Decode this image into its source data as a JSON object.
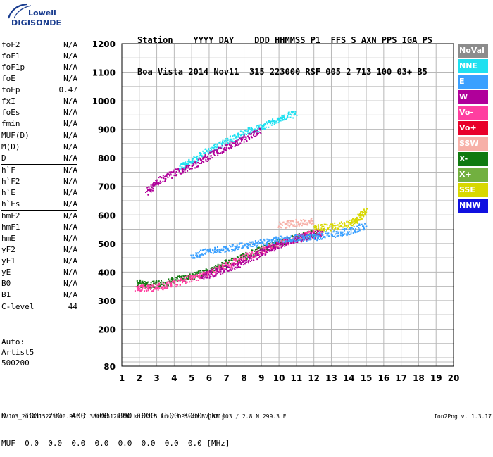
{
  "logo": {
    "line1": "Lowell",
    "line2": "DIGISONDE"
  },
  "header": {
    "line1": "Station    YYYY DAY    DDD HHMMSS P1  FFS S AXN PPS IGA PS",
    "line2": "Boa Vista 2014 Nov11  315 223000 RSF 005 2 713 100 03+ B5"
  },
  "params": {
    "groups": [
      [
        [
          "foF2",
          "N/A"
        ],
        [
          "foF1",
          "N/A"
        ],
        [
          "foF1p",
          "N/A"
        ],
        [
          "foE",
          "N/A"
        ],
        [
          "foEp",
          "0.47"
        ],
        [
          "fxI",
          "N/A"
        ],
        [
          "foEs",
          "N/A"
        ],
        [
          "fmin",
          "N/A"
        ]
      ],
      [
        [
          "MUF(D)",
          "N/A"
        ],
        [
          "M(D)",
          "N/A"
        ],
        [
          "D",
          "N/A"
        ]
      ],
      [
        [
          "h`F",
          "N/A"
        ],
        [
          "h`F2",
          "N/A"
        ],
        [
          "h`E",
          "N/A"
        ],
        [
          "h`Es",
          "N/A"
        ]
      ],
      [
        [
          "hmF2",
          "N/A"
        ],
        [
          "hmF1",
          "N/A"
        ],
        [
          "hmE",
          "N/A"
        ],
        [
          "yF2",
          "N/A"
        ],
        [
          "yF1",
          "N/A"
        ],
        [
          "yE",
          "N/A"
        ],
        [
          "B0",
          "N/A"
        ],
        [
          "B1",
          "N/A"
        ]
      ],
      [
        [
          "C-level",
          "44"
        ]
      ]
    ]
  },
  "auto": {
    "line1": "Auto:",
    "line2": "Artist5",
    "line3": "500200"
  },
  "legend": [
    {
      "label": "NoVal",
      "color": "#8c8c8c"
    },
    {
      "label": "NNE",
      "color": "#1fe0f0"
    },
    {
      "label": "E",
      "color": "#3aa0ff"
    },
    {
      "label": "W",
      "color": "#b0009a"
    },
    {
      "label": "Vo-",
      "color": "#ff3fa0"
    },
    {
      "label": "Vo+",
      "color": "#e8002a"
    },
    {
      "label": "SSW",
      "color": "#f7b0a8"
    },
    {
      "label": "X-",
      "color": "#107a10"
    },
    {
      "label": "X+",
      "color": "#72b040"
    },
    {
      "label": "SSE",
      "color": "#d8d800"
    },
    {
      "label": "NNW",
      "color": "#1010e0"
    }
  ],
  "dmuf": {
    "line1": "D    100  200  400  600  800 1000 1500 3000 [km]",
    "line2": "MUF  0.0  0.0  0.0  0.0  0.0  0.0  0.0  0.0 [MHz]"
  },
  "footer": {
    "left": "BVJ03_2014315223000.RSF / 380fx512h 50 kHz 2.5 km / DPS-4D BVJ03 003 / 2.8 N 299.3 E",
    "right": "Ion2Png v. 1.3.17"
  },
  "chart_data": {
    "type": "scatter",
    "title": "",
    "xlabel": "",
    "ylabel": "",
    "xlim": [
      1,
      20
    ],
    "ylim": [
      80,
      1200
    ],
    "x_ticks": [
      1,
      2,
      3,
      4,
      5,
      6,
      7,
      8,
      9,
      10,
      11,
      12,
      13,
      14,
      15,
      16,
      17,
      18,
      19,
      20
    ],
    "y_ticks": [
      80,
      100,
      200,
      300,
      400,
      500,
      600,
      700,
      800,
      900,
      1000,
      1100,
      1200
    ],
    "y_tick_labels": [
      "80",
      "",
      "200",
      "300",
      "400",
      "500",
      "600",
      "700",
      "800",
      "900",
      "1000",
      "1100",
      "1200"
    ],
    "grid": true,
    "traces": [
      {
        "name": "X-",
        "x": [
          1.9,
          2.5,
          3.5,
          4.5,
          5.5,
          6.5,
          7.5,
          8.5,
          9.5,
          10.5,
          11.5,
          12.5
        ],
        "y": [
          365,
          355,
          365,
          380,
          395,
          420,
          445,
          470,
          495,
          515,
          530,
          545
        ]
      },
      {
        "name": "Vo-",
        "x": [
          1.8,
          2.5,
          3.5,
          4.5,
          5.5,
          6.5,
          7.5,
          8.5,
          9.5,
          10.5,
          11.5,
          12.5
        ],
        "y": [
          345,
          345,
          355,
          370,
          390,
          410,
          440,
          465,
          490,
          510,
          530,
          545
        ]
      },
      {
        "name": "W",
        "x": [
          5.5,
          6.5,
          7.5,
          8.5,
          9.5,
          10.5,
          11.5,
          12.5
        ],
        "y": [
          385,
          405,
          425,
          455,
          485,
          510,
          525,
          540
        ]
      },
      {
        "name": "E",
        "x": [
          5,
          6,
          7,
          8,
          9,
          10,
          11,
          12,
          13,
          14,
          15
        ],
        "y": [
          460,
          475,
          485,
          495,
          505,
          515,
          520,
          525,
          535,
          545,
          565
        ]
      },
      {
        "name": "SSE",
        "x": [
          12,
          13,
          14,
          14.5,
          15
        ],
        "y": [
          555,
          560,
          570,
          590,
          620
        ]
      },
      {
        "name": "SSW",
        "x": [
          10,
          11,
          12
        ],
        "y": [
          565,
          575,
          580
        ]
      },
      {
        "name": "NNE",
        "x": [
          4.3,
          5,
          6,
          7,
          8,
          9,
          10,
          11
        ],
        "y": [
          770,
          790,
          830,
          860,
          890,
          910,
          940,
          960
        ]
      },
      {
        "name": "W",
        "x": [
          2.4,
          3,
          4,
          5,
          6,
          7,
          8,
          9
        ],
        "y": [
          680,
          720,
          750,
          770,
          810,
          840,
          870,
          900
        ]
      }
    ]
  }
}
